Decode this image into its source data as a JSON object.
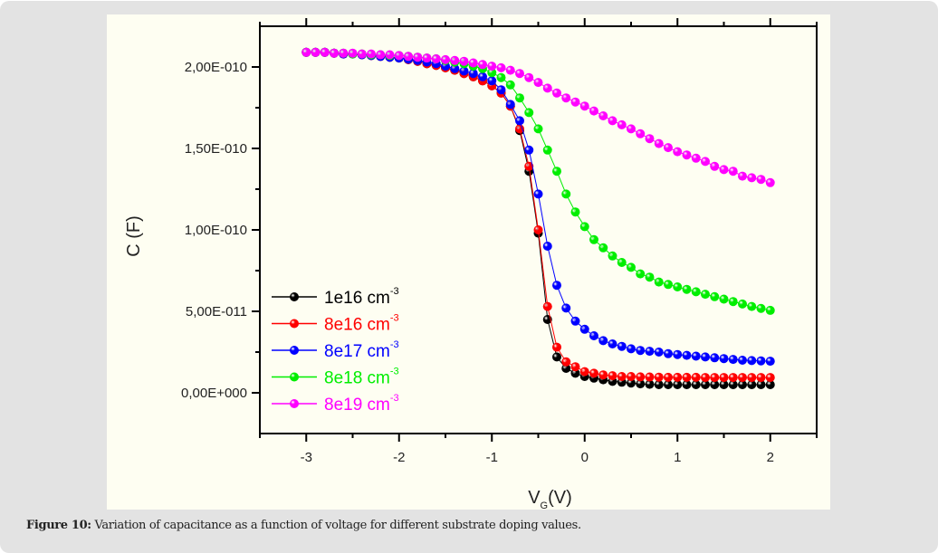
{
  "caption": {
    "label": "Figure 10:",
    "text": " Variation of capacitance as a function of voltage for different substrate doping values."
  },
  "chart_data": {
    "type": "line",
    "title": "",
    "xlabel": "V",
    "xlabel_subscript": "G",
    "xlabel_suffix": "(V)",
    "ylabel": "C (F)",
    "xlim": [
      -3.5,
      2.5
    ],
    "ylim": [
      -2.5e-11,
      2.25e-10
    ],
    "x_ticks": [
      -3,
      -2,
      -1,
      0,
      1,
      2
    ],
    "x_tick_labels": [
      "-3",
      "-2",
      "-1",
      "0",
      "1",
      "2"
    ],
    "x_minor_ticks": [
      -3.5,
      -2.5,
      -1.5,
      -0.5,
      0.5,
      1.5,
      2.5
    ],
    "y_ticks": [
      0,
      5e-11,
      1e-10,
      1.5e-10,
      2e-10
    ],
    "y_tick_labels": [
      "0,00E+000",
      "5,00E-011",
      "1,00E-010",
      "1,50E-010",
      "2,00E-010"
    ],
    "y_minor_ticks": [
      2.5e-11,
      7.5e-11,
      1.25e-10,
      1.75e-10
    ],
    "grid": false,
    "legend_position": "bottom-left",
    "y_unit_scale": 1e-10,
    "x": [
      -3.0,
      -2.9,
      -2.8,
      -2.7,
      -2.6,
      -2.5,
      -2.4,
      -2.3,
      -2.2,
      -2.1,
      -2.0,
      -1.9,
      -1.8,
      -1.7,
      -1.6,
      -1.5,
      -1.4,
      -1.3,
      -1.2,
      -1.1,
      -1.0,
      -0.9,
      -0.8,
      -0.7,
      -0.6,
      -0.5,
      -0.4,
      -0.3,
      -0.2,
      -0.1,
      0.0,
      0.1,
      0.2,
      0.3,
      0.4,
      0.5,
      0.6,
      0.7,
      0.8,
      0.9,
      1.0,
      1.1,
      1.2,
      1.3,
      1.4,
      1.5,
      1.6,
      1.7,
      1.8,
      1.9,
      2.0
    ],
    "series": [
      {
        "name": "1e16 cm",
        "superscript": "-3",
        "color": "#000000",
        "values": [
          2.09,
          2.09,
          2.09,
          2.085,
          2.08,
          2.08,
          2.075,
          2.07,
          2.065,
          2.06,
          2.055,
          2.045,
          2.035,
          2.02,
          2.01,
          1.995,
          1.98,
          1.96,
          1.94,
          1.915,
          1.885,
          1.84,
          1.76,
          1.61,
          1.36,
          0.98,
          0.45,
          0.22,
          0.15,
          0.12,
          0.1,
          0.09,
          0.08,
          0.07,
          0.065,
          0.06,
          0.055,
          0.052,
          0.05,
          0.05,
          0.05,
          0.05,
          0.05,
          0.05,
          0.05,
          0.05,
          0.05,
          0.05,
          0.05,
          0.05,
          0.05
        ]
      },
      {
        "name": "8e16 cm",
        "superscript": "-3",
        "color": "#ff0000",
        "values": [
          2.09,
          2.09,
          2.09,
          2.085,
          2.08,
          2.08,
          2.075,
          2.07,
          2.065,
          2.06,
          2.055,
          2.045,
          2.035,
          2.02,
          2.01,
          1.995,
          1.98,
          1.96,
          1.94,
          1.915,
          1.885,
          1.84,
          1.76,
          1.62,
          1.39,
          1.0,
          0.53,
          0.28,
          0.19,
          0.16,
          0.13,
          0.12,
          0.11,
          0.105,
          0.1,
          0.1,
          0.098,
          0.097,
          0.096,
          0.095,
          0.095,
          0.095,
          0.095,
          0.094,
          0.094,
          0.094,
          0.094,
          0.094,
          0.094,
          0.094,
          0.094
        ]
      },
      {
        "name": "8e17 cm",
        "superscript": "-3",
        "color": "#0000ff",
        "values": [
          2.09,
          2.09,
          2.09,
          2.085,
          2.08,
          2.08,
          2.075,
          2.07,
          2.065,
          2.06,
          2.055,
          2.048,
          2.04,
          2.03,
          2.02,
          2.005,
          1.99,
          1.975,
          1.96,
          1.94,
          1.915,
          1.86,
          1.77,
          1.67,
          1.49,
          1.22,
          0.9,
          0.66,
          0.52,
          0.44,
          0.39,
          0.35,
          0.32,
          0.3,
          0.285,
          0.27,
          0.26,
          0.255,
          0.25,
          0.24,
          0.235,
          0.23,
          0.225,
          0.22,
          0.215,
          0.21,
          0.205,
          0.2,
          0.198,
          0.196,
          0.194
        ]
      },
      {
        "name": "8e18 cm",
        "superscript": "-3",
        "color": "#00ee00",
        "values": [
          2.09,
          2.09,
          2.09,
          2.085,
          2.085,
          2.08,
          2.08,
          2.075,
          2.075,
          2.07,
          2.07,
          2.065,
          2.06,
          2.055,
          2.05,
          2.04,
          2.03,
          2.02,
          2.005,
          1.99,
          1.965,
          1.935,
          1.89,
          1.81,
          1.72,
          1.62,
          1.49,
          1.36,
          1.22,
          1.11,
          1.02,
          0.94,
          0.89,
          0.84,
          0.8,
          0.77,
          0.73,
          0.71,
          0.68,
          0.665,
          0.65,
          0.635,
          0.62,
          0.605,
          0.59,
          0.575,
          0.56,
          0.545,
          0.53,
          0.518,
          0.506
        ]
      },
      {
        "name": "8e19 cm",
        "superscript": "-3",
        "color": "#ff00ff",
        "values": [
          2.09,
          2.09,
          2.09,
          2.085,
          2.085,
          2.085,
          2.08,
          2.08,
          2.075,
          2.075,
          2.07,
          2.065,
          2.06,
          2.055,
          2.05,
          2.045,
          2.04,
          2.035,
          2.025,
          2.015,
          2.005,
          1.995,
          1.98,
          1.96,
          1.935,
          1.905,
          1.87,
          1.84,
          1.81,
          1.785,
          1.76,
          1.73,
          1.7,
          1.67,
          1.645,
          1.62,
          1.59,
          1.56,
          1.53,
          1.505,
          1.48,
          1.46,
          1.44,
          1.42,
          1.39,
          1.37,
          1.36,
          1.33,
          1.32,
          1.31,
          1.29
        ]
      }
    ]
  }
}
